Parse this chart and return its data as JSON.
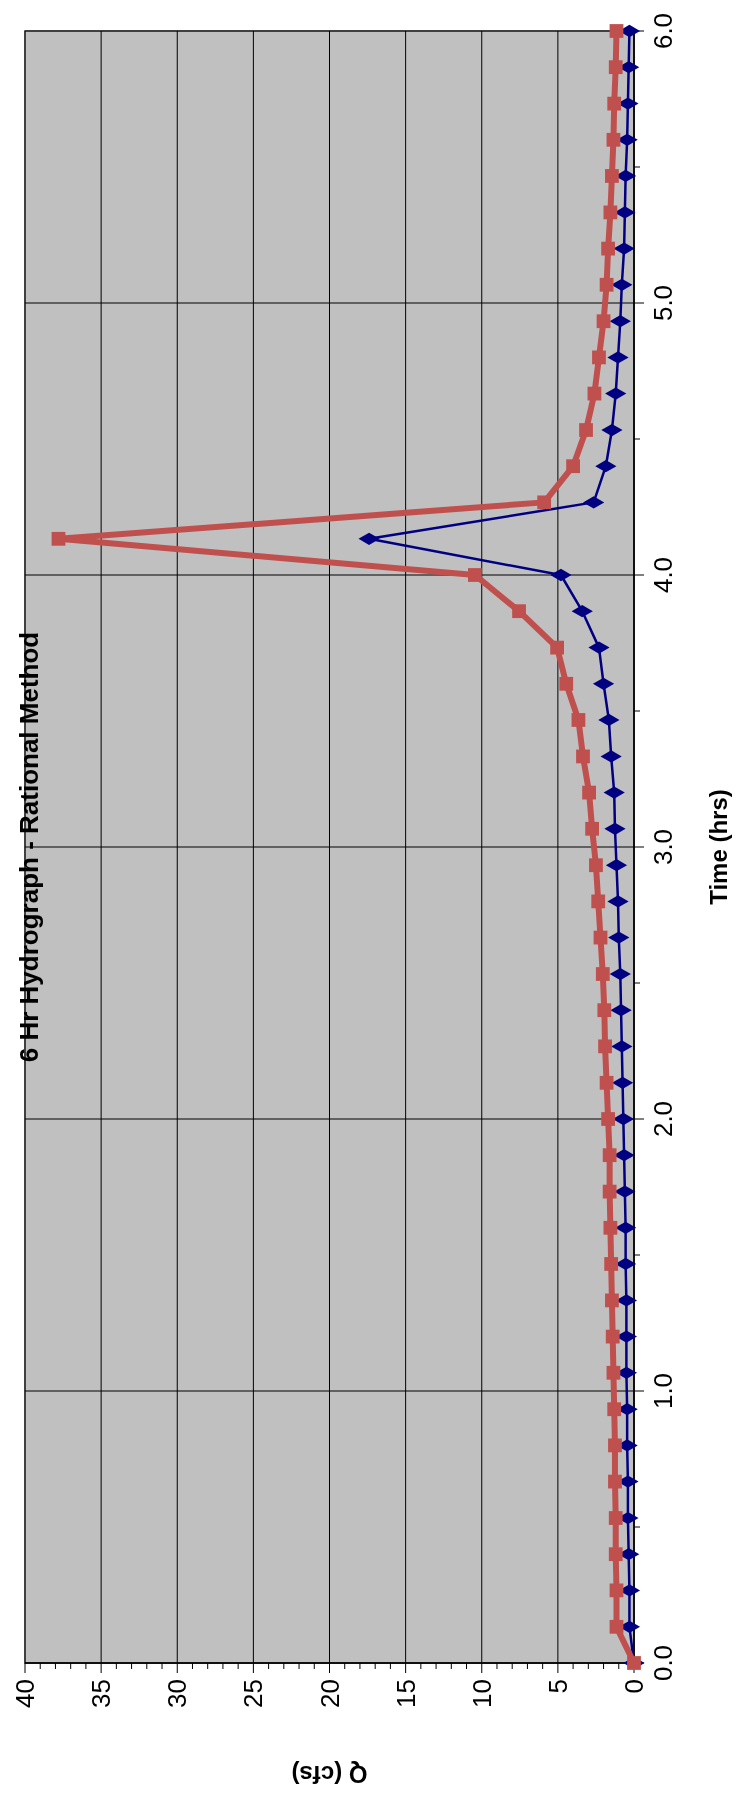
{
  "chart_data": {
    "type": "line",
    "title": "6 Hr Hydrograph - Rational Method",
    "xlabel": "Q (cfs)",
    "ylabel": "Time (hrs)",
    "series": [
      {
        "color": "#000080",
        "marker": "diamond",
        "x": [
          0,
          0.3,
          0.3,
          0.35,
          0.4,
          0.4,
          0.45,
          0.45,
          0.5,
          0.5,
          0.5,
          0.55,
          0.55,
          0.6,
          0.65,
          0.7,
          0.75,
          0.8,
          0.85,
          0.9,
          1.0,
          1.05,
          1.15,
          1.25,
          1.3,
          1.5,
          1.65,
          2.0,
          2.3,
          3.4,
          4.8,
          17.4,
          2.65,
          1.85,
          1.45,
          1.2,
          1.05,
          0.9,
          0.8,
          0.65,
          0.6,
          0.55,
          0.45,
          0.4,
          0.35,
          0.3
        ],
        "values": [
          0,
          0.133,
          0.267,
          0.4,
          0.533,
          0.667,
          0.8,
          0.933,
          1.067,
          1.2,
          1.333,
          1.467,
          1.6,
          1.733,
          1.867,
          2,
          2.133,
          2.267,
          2.4,
          2.533,
          2.667,
          2.8,
          2.933,
          3.067,
          3.2,
          3.333,
          3.467,
          3.6,
          3.733,
          3.867,
          4,
          4.133,
          4.267,
          4.4,
          4.533,
          4.667,
          4.8,
          4.933,
          5.067,
          5.2,
          5.333,
          5.467,
          5.6,
          5.733,
          5.867,
          6
        ]
      },
      {
        "color": "#c0504d",
        "marker": "square",
        "x": [
          0,
          1.15,
          1.15,
          1.2,
          1.2,
          1.25,
          1.25,
          1.3,
          1.35,
          1.4,
          1.45,
          1.5,
          1.55,
          1.6,
          1.6,
          1.7,
          1.8,
          1.9,
          1.95,
          2.05,
          2.2,
          2.35,
          2.5,
          2.75,
          2.95,
          3.35,
          3.65,
          4.45,
          5.05,
          7.55,
          10.45,
          37.8,
          5.9,
          4.0,
          3.15,
          2.6,
          2.3,
          2.0,
          1.8,
          1.7,
          1.55,
          1.45,
          1.35,
          1.3,
          1.2,
          1.15
        ],
        "values": [
          0,
          0.133,
          0.267,
          0.4,
          0.533,
          0.667,
          0.8,
          0.933,
          1.067,
          1.2,
          1.333,
          1.467,
          1.6,
          1.733,
          1.867,
          2,
          2.133,
          2.267,
          2.4,
          2.533,
          2.667,
          2.8,
          2.933,
          3.067,
          3.2,
          3.333,
          3.467,
          3.6,
          3.733,
          3.867,
          4,
          4.133,
          4.267,
          4.4,
          4.533,
          4.667,
          4.8,
          4.933,
          5.067,
          5.2,
          5.333,
          5.467,
          5.6,
          5.733,
          5.867,
          6
        ]
      }
    ],
    "xlim": [
      40,
      0
    ],
    "ylim": [
      0,
      6
    ],
    "yticks": [
      {
        "value": 0,
        "label": "0.0"
      },
      {
        "value": 0.5,
        "label": null
      },
      {
        "value": 1,
        "label": "1.0"
      },
      {
        "value": 1.5,
        "label": null
      },
      {
        "value": 2,
        "label": "2.0"
      },
      {
        "value": 2.5,
        "label": null
      },
      {
        "value": 3,
        "label": "3.0"
      },
      {
        "value": 3.5,
        "label": null
      },
      {
        "value": 4,
        "label": "4.0"
      },
      {
        "value": 4.5,
        "label": null
      },
      {
        "value": 5,
        "label": "5.0"
      },
      {
        "value": 5.5,
        "label": null
      },
      {
        "value": 6,
        "label": "6.0"
      }
    ],
    "xticks": [
      40,
      {
        "value": 39,
        "label": null
      },
      {
        "value": 38,
        "label": null
      },
      {
        "value": 37,
        "label": null
      },
      {
        "value": 36,
        "label": null
      },
      35,
      {
        "value": 34,
        "label": null
      },
      {
        "value": 33,
        "label": null
      },
      {
        "value": 32,
        "label": null
      },
      {
        "value": 31,
        "label": null
      },
      30,
      {
        "value": 29,
        "label": null
      },
      {
        "value": 28,
        "label": null
      },
      {
        "value": 27,
        "label": null
      },
      {
        "value": 26,
        "label": null
      },
      25,
      {
        "value": 24,
        "label": null
      },
      {
        "value": 23,
        "label": null
      },
      {
        "value": 22,
        "label": null
      },
      {
        "value": 21,
        "label": null
      },
      20,
      {
        "value": 19,
        "label": null
      },
      {
        "value": 18,
        "label": null
      },
      {
        "value": 17,
        "label": null
      },
      {
        "value": 16,
        "label": null
      },
      15,
      {
        "value": 14,
        "label": null
      },
      {
        "value": 13,
        "label": null
      },
      {
        "value": 12,
        "label": null
      },
      {
        "value": 11,
        "label": null
      },
      10,
      {
        "value": 9,
        "label": null
      },
      {
        "value": 8,
        "label": null
      },
      {
        "value": 7,
        "label": null
      },
      {
        "value": 6,
        "label": null
      },
      5,
      {
        "value": 4,
        "label": null
      },
      {
        "value": 3,
        "label": null
      },
      {
        "value": 2,
        "label": null
      },
      {
        "value": 1,
        "label": null
      },
      0
    ],
    "grid": true
  }
}
